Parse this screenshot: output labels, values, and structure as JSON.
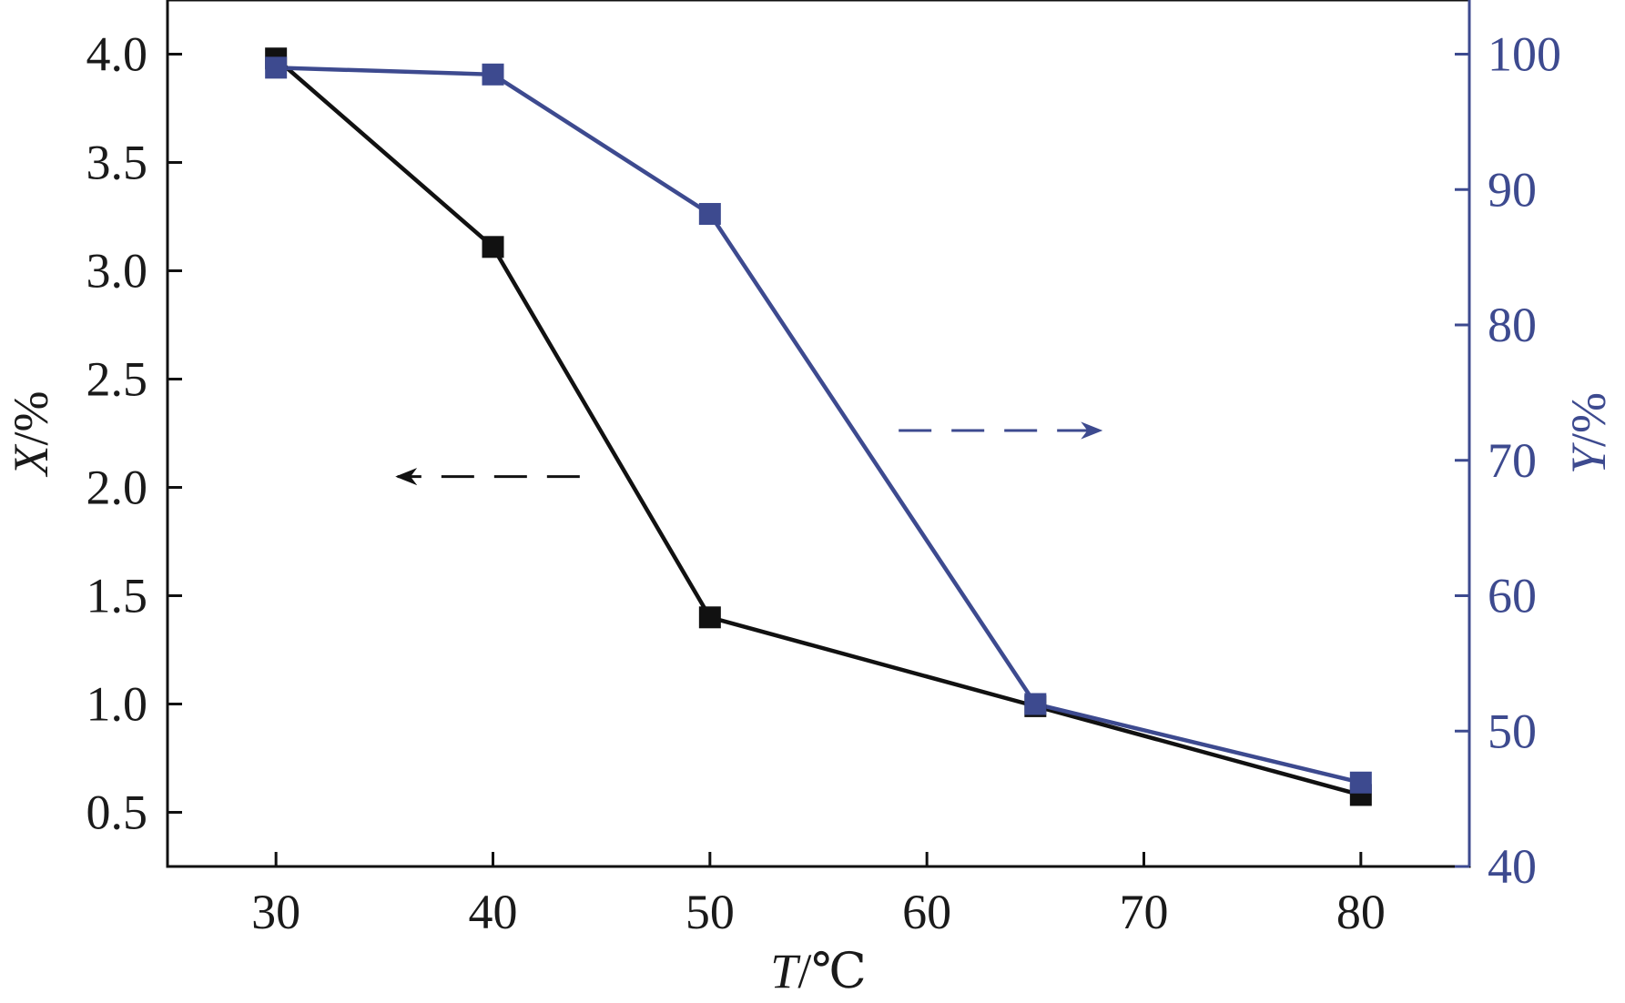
{
  "chart_data": {
    "type": "line",
    "xlabel": {
      "var": "T",
      "unit": "/℃"
    },
    "ylabel_left": {
      "var": "X",
      "unit": "/%"
    },
    "ylabel_right": {
      "var": "Y",
      "unit": "/%"
    },
    "x_ticks": [
      "30",
      "40",
      "50",
      "60",
      "70",
      "80"
    ],
    "y_left_ticks": [
      "0.5",
      "1.0",
      "1.5",
      "2.0",
      "2.5",
      "3.0",
      "3.5",
      "4.0"
    ],
    "y_right_ticks": [
      "40",
      "50",
      "60",
      "70",
      "80",
      "90",
      "100"
    ],
    "xlim": [
      25,
      85
    ],
    "ylim_left": [
      0.25,
      4.25
    ],
    "ylim_right": [
      40,
      104
    ],
    "grid": false,
    "series": [
      {
        "axis": "left",
        "color": "#111111",
        "marker": "square",
        "x": [
          30,
          40,
          50,
          65,
          80
        ],
        "y": [
          3.98,
          3.11,
          1.4,
          0.99,
          0.58
        ]
      },
      {
        "axis": "right",
        "color": "#3d4a8f",
        "marker": "square",
        "x": [
          30,
          40,
          50,
          65,
          80
        ],
        "y": [
          99.0,
          98.5,
          88.2,
          52.0,
          46.2
        ]
      }
    ],
    "annotations": [
      {
        "type": "dashed-arrow",
        "direction": "left",
        "axis": "left",
        "x_from": 44,
        "x_to": 35.6,
        "y": 2.05,
        "color": "#111111"
      },
      {
        "type": "dashed-arrow",
        "direction": "right",
        "axis": "right",
        "x_from": 58.7,
        "x_to": 68,
        "y": 72.2,
        "color": "#3d4a8f"
      }
    ]
  }
}
